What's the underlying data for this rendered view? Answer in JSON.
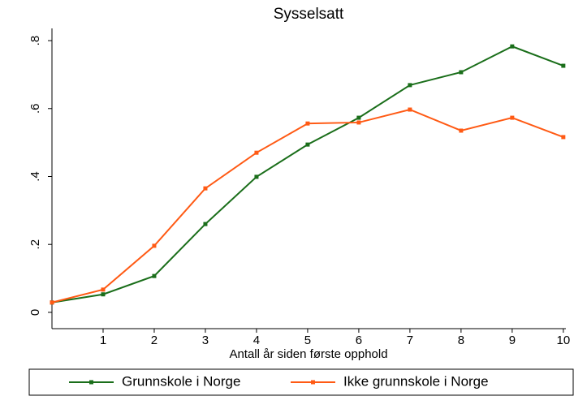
{
  "chart_data": {
    "type": "line",
    "title": "Sysselsatt",
    "x_label": "Antall år siden første opphold",
    "x": [
      0,
      1,
      2,
      3,
      4,
      5,
      6,
      7,
      8,
      9,
      10
    ],
    "series": [
      {
        "name": "Grunnskole i Norge",
        "color": "#1a6e1a",
        "values": [
          0.029,
          0.053,
          0.107,
          0.26,
          0.399,
          0.494,
          0.573,
          0.669,
          0.707,
          0.783,
          0.726
        ]
      },
      {
        "name": "Ikke grunnskole i Norge",
        "color": "#ff5a14",
        "values": [
          0.029,
          0.067,
          0.196,
          0.365,
          0.47,
          0.556,
          0.559,
          0.597,
          0.535,
          0.573,
          0.516
        ]
      }
    ],
    "xlim": [
      0,
      10.05
    ],
    "xticks": [
      1,
      2,
      3,
      4,
      5,
      6,
      7,
      8,
      9,
      10
    ],
    "ylim": [
      -0.048,
      0.836
    ],
    "yticks": [
      0,
      {
        "value": 0.2,
        "label": ".2"
      },
      {
        "value": 0.4,
        "label": ".4"
      },
      {
        "value": 0.6,
        "label": ".6"
      },
      {
        "value": 0.8,
        "label": ".8"
      }
    ],
    "legend": "bottom"
  }
}
